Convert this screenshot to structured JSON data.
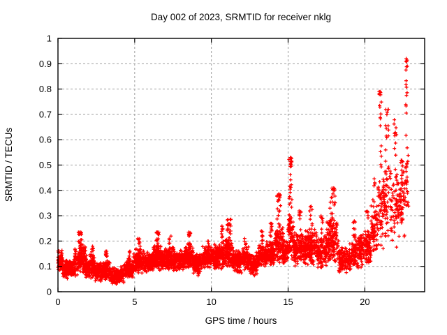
{
  "window": {
    "background_color": "#ffffff"
  },
  "chart_data": {
    "type": "scatter",
    "title": "Day 002 of 2023, SRMTID for receiver nklg",
    "xlabel": "GPS time / hours",
    "ylabel": "SRMTID / TECUs",
    "xlim": [
      0,
      23.9
    ],
    "ylim": [
      0,
      1
    ],
    "xticks": [
      0,
      5,
      10,
      15,
      20
    ],
    "xtick_labels": [
      "0",
      "5",
      "10",
      "15",
      "20"
    ],
    "yticks": [
      0,
      0.1,
      0.2,
      0.3,
      0.4,
      0.5,
      0.6,
      0.7,
      0.8,
      0.9,
      1
    ],
    "ytick_labels": [
      "0",
      "0.1",
      "0.2",
      "0.3",
      "0.4",
      "0.5",
      "0.6",
      "0.7",
      "0.8",
      "0.9",
      "1"
    ],
    "grid": true,
    "grid_color": "#9e9e9e",
    "border_color": "#000000",
    "marker": {
      "shape": "plus",
      "color": "#ff0000"
    },
    "data_time_range": [
      0,
      22.85
    ],
    "seed": 20230102,
    "band_envelope_comment": "dense scatter band read from plot: [t_start_h, t_end_h, y_min, y_max, n_points]",
    "bands": [
      [
        0.0,
        0.3,
        0.08,
        0.17,
        70
      ],
      [
        0.3,
        1.1,
        0.05,
        0.13,
        170
      ],
      [
        1.1,
        1.8,
        0.06,
        0.19,
        150
      ],
      [
        1.8,
        2.4,
        0.05,
        0.15,
        130
      ],
      [
        2.4,
        2.9,
        0.04,
        0.12,
        110
      ],
      [
        2.9,
        3.4,
        0.04,
        0.13,
        110
      ],
      [
        3.4,
        4.3,
        0.03,
        0.1,
        180
      ],
      [
        4.3,
        4.9,
        0.05,
        0.13,
        130
      ],
      [
        4.9,
        5.6,
        0.07,
        0.17,
        150
      ],
      [
        5.6,
        6.2,
        0.07,
        0.16,
        130
      ],
      [
        6.2,
        6.8,
        0.08,
        0.19,
        140
      ],
      [
        6.8,
        7.6,
        0.08,
        0.18,
        170
      ],
      [
        7.6,
        8.3,
        0.08,
        0.17,
        150
      ],
      [
        8.3,
        8.8,
        0.09,
        0.19,
        110
      ],
      [
        8.8,
        9.4,
        0.06,
        0.16,
        130
      ],
      [
        9.4,
        10.2,
        0.09,
        0.18,
        170
      ],
      [
        10.2,
        10.9,
        0.08,
        0.19,
        150
      ],
      [
        10.9,
        11.4,
        0.09,
        0.21,
        110
      ],
      [
        11.4,
        12.0,
        0.07,
        0.17,
        130
      ],
      [
        12.0,
        12.5,
        0.08,
        0.18,
        110
      ],
      [
        12.5,
        13.0,
        0.06,
        0.16,
        110
      ],
      [
        13.0,
        13.6,
        0.09,
        0.19,
        130
      ],
      [
        13.6,
        14.1,
        0.1,
        0.21,
        110
      ],
      [
        14.1,
        14.7,
        0.1,
        0.26,
        120
      ],
      [
        14.7,
        15.0,
        0.1,
        0.21,
        60
      ],
      [
        15.0,
        15.35,
        0.12,
        0.32,
        70
      ],
      [
        15.35,
        16.1,
        0.1,
        0.24,
        140
      ],
      [
        16.1,
        16.9,
        0.1,
        0.25,
        150
      ],
      [
        16.9,
        17.5,
        0.08,
        0.23,
        110
      ],
      [
        17.5,
        18.3,
        0.1,
        0.3,
        140
      ],
      [
        18.3,
        19.1,
        0.07,
        0.19,
        140
      ],
      [
        19.1,
        19.9,
        0.09,
        0.23,
        140
      ],
      [
        19.9,
        20.4,
        0.1,
        0.26,
        90
      ],
      [
        20.4,
        20.8,
        0.13,
        0.36,
        60
      ],
      [
        20.8,
        21.2,
        0.15,
        0.5,
        50
      ],
      [
        21.2,
        21.7,
        0.18,
        0.55,
        55
      ],
      [
        21.7,
        22.2,
        0.17,
        0.5,
        50
      ],
      [
        22.2,
        22.6,
        0.2,
        0.5,
        45
      ],
      [
        22.6,
        22.85,
        0.25,
        0.6,
        25
      ]
    ],
    "spike_comment": "vertical spike clusters read from plot: [t_center_h, half_width_h, y_base, y_top, n_points]",
    "spikes": [
      [
        1.45,
        0.12,
        0.1,
        0.235,
        30
      ],
      [
        2.25,
        0.06,
        0.1,
        0.18,
        12
      ],
      [
        3.15,
        0.06,
        0.08,
        0.16,
        10
      ],
      [
        4.65,
        0.06,
        0.08,
        0.16,
        10
      ],
      [
        5.3,
        0.1,
        0.1,
        0.21,
        18
      ],
      [
        6.5,
        0.1,
        0.1,
        0.235,
        22
      ],
      [
        7.3,
        0.07,
        0.1,
        0.22,
        14
      ],
      [
        8.55,
        0.1,
        0.1,
        0.235,
        20
      ],
      [
        9.8,
        0.06,
        0.1,
        0.2,
        10
      ],
      [
        10.7,
        0.07,
        0.12,
        0.26,
        14
      ],
      [
        11.15,
        0.12,
        0.12,
        0.29,
        24
      ],
      [
        12.2,
        0.06,
        0.1,
        0.22,
        10
      ],
      [
        13.3,
        0.06,
        0.1,
        0.24,
        12
      ],
      [
        13.9,
        0.08,
        0.12,
        0.27,
        14
      ],
      [
        14.4,
        0.12,
        0.15,
        0.39,
        26
      ],
      [
        15.15,
        0.1,
        0.25,
        0.53,
        30
      ],
      [
        15.8,
        0.1,
        0.12,
        0.32,
        18
      ],
      [
        16.5,
        0.1,
        0.12,
        0.34,
        20
      ],
      [
        17.2,
        0.07,
        0.1,
        0.3,
        14
      ],
      [
        17.9,
        0.18,
        0.15,
        0.41,
        34
      ],
      [
        19.3,
        0.08,
        0.1,
        0.28,
        12
      ],
      [
        20.15,
        0.08,
        0.12,
        0.33,
        14
      ],
      [
        20.6,
        0.08,
        0.15,
        0.45,
        14
      ],
      [
        21.0,
        0.08,
        0.4,
        0.79,
        18
      ],
      [
        21.45,
        0.1,
        0.35,
        0.72,
        20
      ],
      [
        22.0,
        0.1,
        0.3,
        0.68,
        16
      ],
      [
        22.4,
        0.08,
        0.3,
        0.52,
        14
      ],
      [
        22.72,
        0.06,
        0.55,
        0.92,
        16
      ]
    ],
    "notable_points": [
      {
        "x": 22.7,
        "y": 0.92,
        "note": "maximum"
      },
      {
        "x": 15.15,
        "y": 0.53,
        "note": "isolated midday spike"
      },
      {
        "x": 21.0,
        "y": 0.79,
        "note": "evening enhancement onset"
      },
      {
        "x": 3.8,
        "y": 0.03,
        "note": "quietest period"
      }
    ]
  }
}
